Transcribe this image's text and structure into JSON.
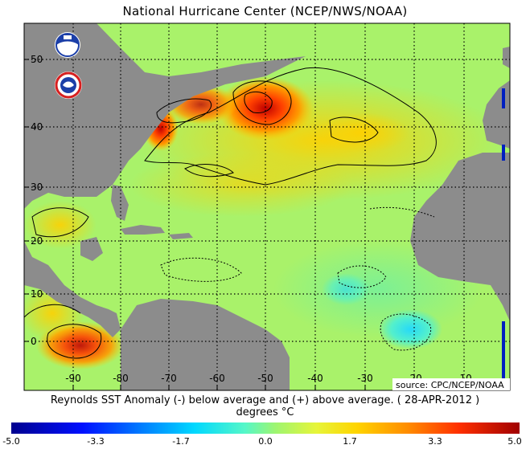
{
  "title": "National Hurricane Center (NCEP/NWS/NOAA)",
  "map": {
    "lon_labels": [
      "-90",
      "-80",
      "-70",
      "-60",
      "-50",
      "-40",
      "-30",
      "-20",
      "-10"
    ],
    "lat_labels": [
      "50",
      "40",
      "30",
      "20",
      "10",
      "0"
    ],
    "lon_range": [
      -97,
      3
    ],
    "lat_range": [
      -9,
      58
    ],
    "grid": "dotted"
  },
  "logos": {
    "noaa": "noaa-logo",
    "nws": "nws-logo"
  },
  "source_label": "source:  CPC/NCEP/NOAA",
  "caption": {
    "line1": "Reynolds SST Anomaly (-) below average and (+) above average. ( 28-APR-2012 )",
    "line2": "degrees °C"
  },
  "colorbar": {
    "ticks": [
      "-5.0",
      "-3.3",
      "-1.7",
      "0.0",
      "1.7",
      "3.3",
      "5.0"
    ],
    "min": -5.0,
    "max": 5.0,
    "colors": {
      "land": "#8c8c8c",
      "base_ocean": "#a9f26a",
      "warm": "#ffd400",
      "hot": "#ff5a00",
      "cool": "#4ff0e0"
    }
  }
}
